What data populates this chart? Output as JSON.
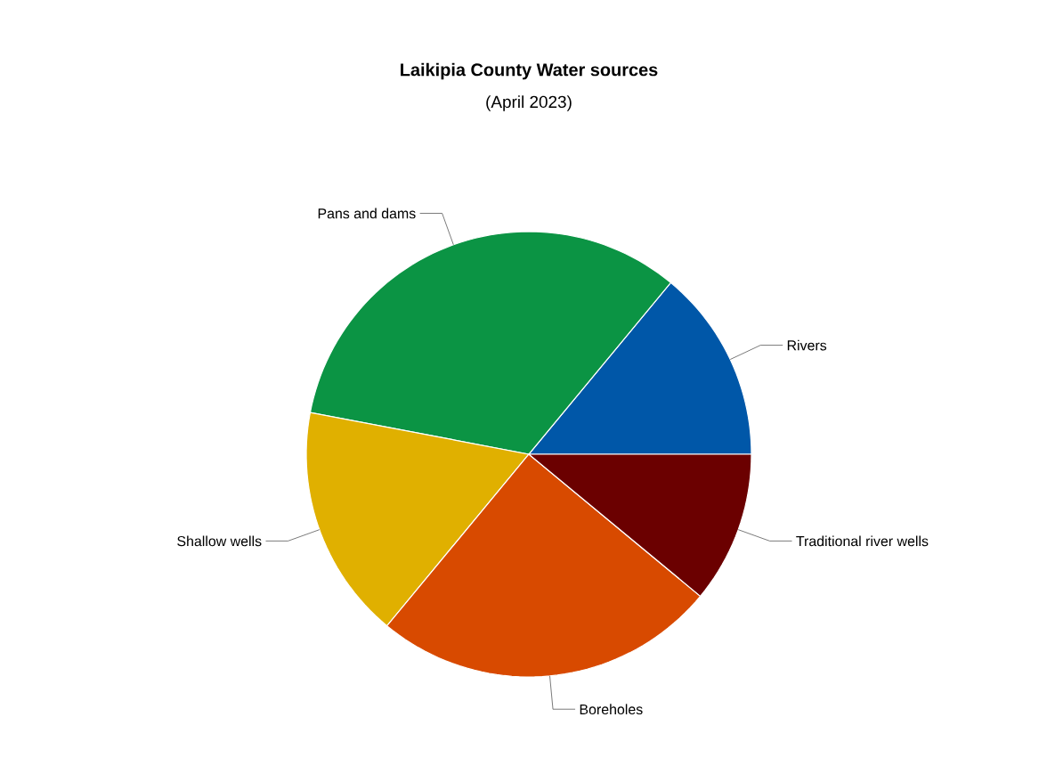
{
  "chart_data": {
    "type": "pie",
    "title": "Laikipia County Water sources",
    "subtitle": "(April 2023)",
    "categories": [
      "Rivers",
      "Pans and dams",
      "Shallow wells",
      "Boreholes",
      "Traditional river wells"
    ],
    "values": [
      14,
      33,
      17,
      25,
      11
    ],
    "colors": [
      "#0057a8",
      "#0b9444",
      "#e0b000",
      "#d84a00",
      "#6b0000"
    ]
  }
}
